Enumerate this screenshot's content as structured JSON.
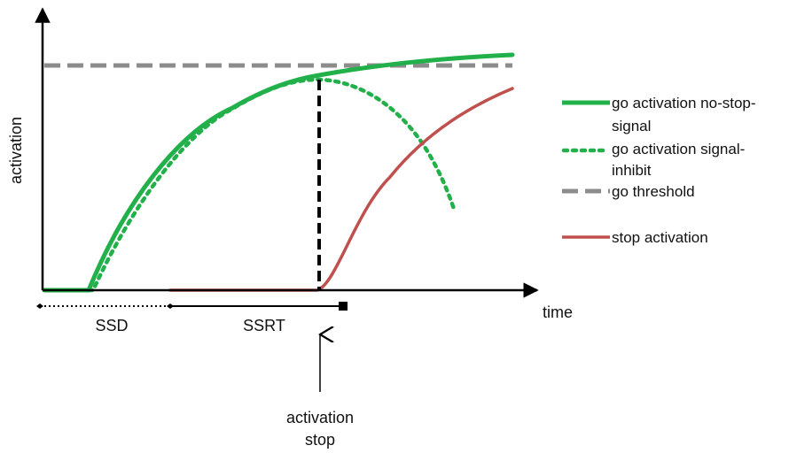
{
  "axes": {
    "y_label": "activation",
    "x_label": "time"
  },
  "markers": {
    "ssd": "SSD",
    "ssrt": "SSRT",
    "annotation_line1": "activation",
    "annotation_line2": "stop"
  },
  "legend": {
    "go_nostop_line1": "go activation no-stop-",
    "go_nostop_line2": "signal",
    "go_inhibit_line1": "go activation signal-",
    "go_inhibit_line2": "inhibit",
    "threshold": "go threshold",
    "stop": "stop activation"
  },
  "colors": {
    "go": "#22b04b",
    "threshold": "#8c8c8c",
    "stop": "#c0504d",
    "axis": "#000000"
  }
}
